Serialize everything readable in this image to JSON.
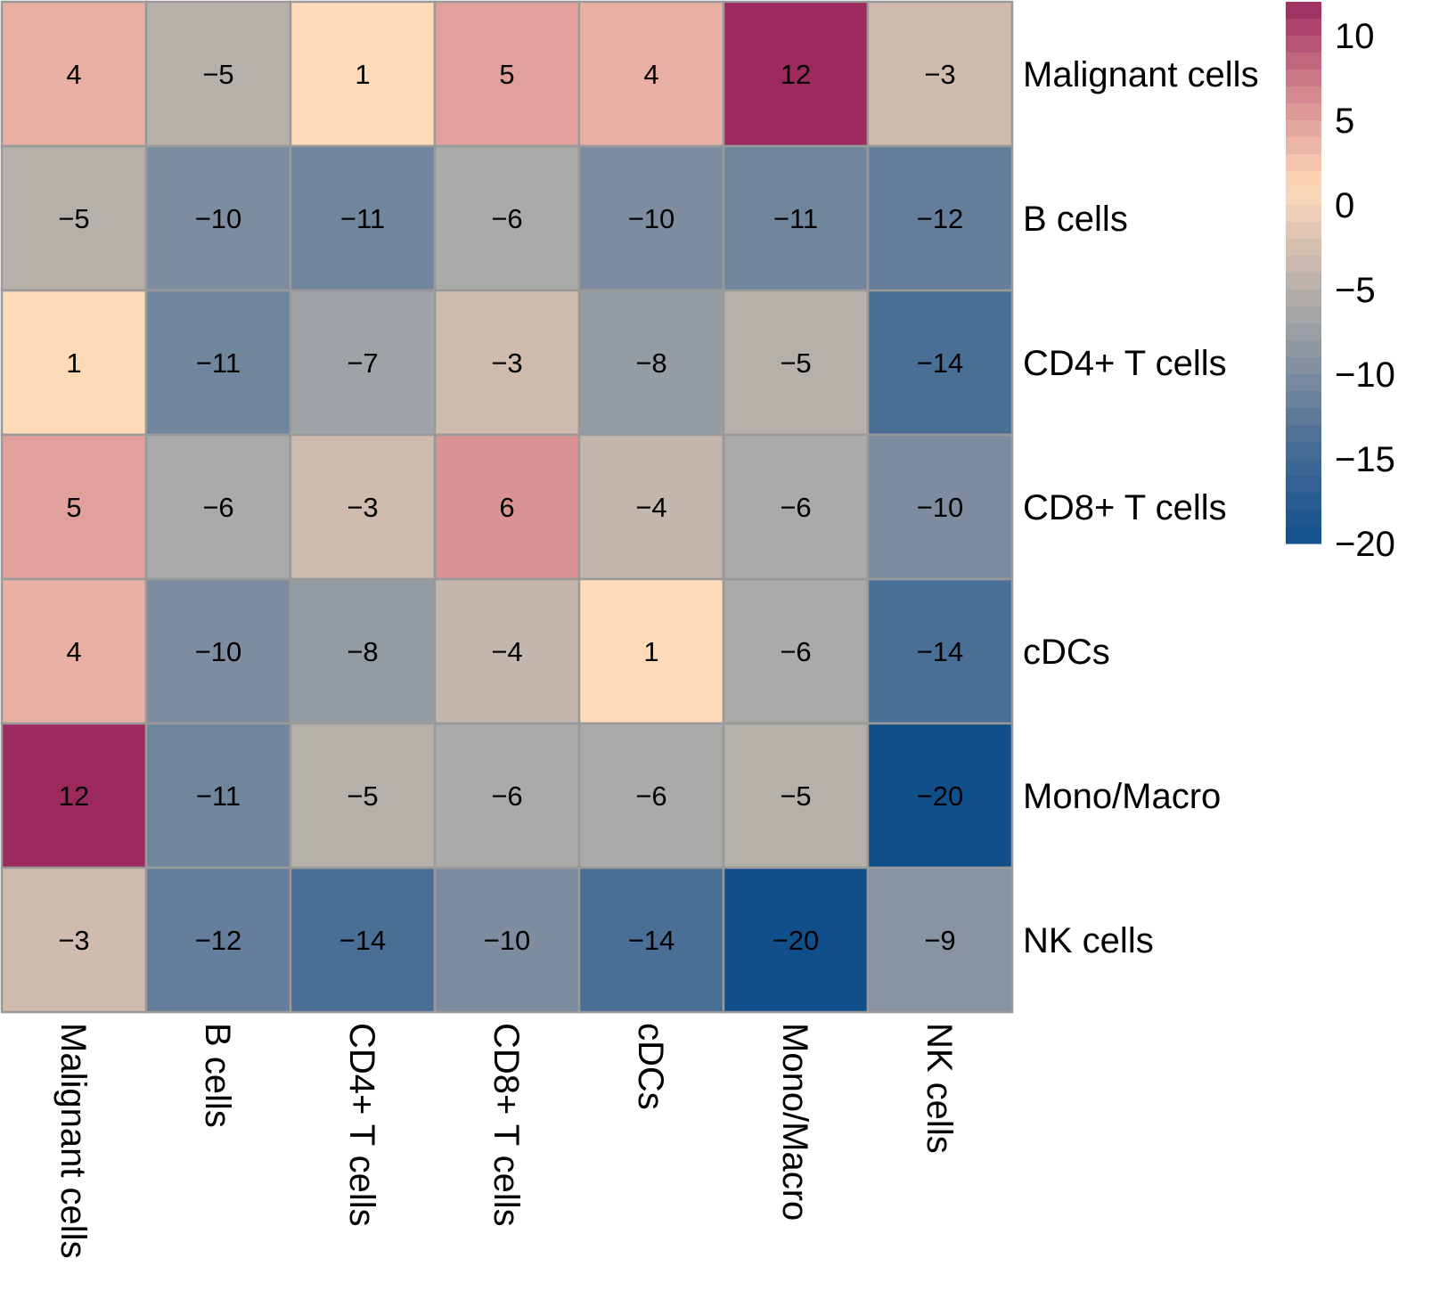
{
  "chart_data": {
    "type": "heatmap",
    "title": "",
    "rows": [
      "Malignant cells",
      "B cells",
      "CD4+ T cells",
      "CD8+ T cells",
      "cDCs",
      "Mono/Macro",
      "NK cells"
    ],
    "columns": [
      "Malignant cells",
      "B cells",
      "CD4+ T cells",
      "CD8+ T cells",
      "cDCs",
      "Mono/Macro",
      "NK cells"
    ],
    "values": [
      [
        4,
        -5,
        1,
        5,
        4,
        12,
        -3
      ],
      [
        -5,
        -10,
        -11,
        -6,
        -10,
        -11,
        -12
      ],
      [
        1,
        -11,
        -7,
        -3,
        -8,
        -5,
        -14
      ],
      [
        5,
        -6,
        -3,
        6,
        -4,
        -6,
        -10
      ],
      [
        4,
        -10,
        -8,
        -4,
        1,
        -6,
        -14
      ],
      [
        12,
        -11,
        -5,
        -6,
        -6,
        -5,
        -20
      ],
      [
        -3,
        -12,
        -14,
        -10,
        -14,
        -20,
        -9
      ]
    ],
    "cell_labels_shown": true,
    "row_label_position": "right",
    "column_label_position": "bottom",
    "column_label_rotation": "vertical",
    "legend": {
      "type": "colorbar",
      "position": "top-right",
      "range": [
        -20,
        12
      ],
      "ticks": [
        10,
        5,
        0,
        -5,
        -10,
        -15,
        -20
      ],
      "tick_labels": [
        "10",
        "5",
        "0",
        "−5",
        "−10",
        "−15",
        "−20"
      ],
      "color_stops": [
        {
          "value": 12,
          "color": "#9C2A5E"
        },
        {
          "value": 6,
          "color": "#DA9295"
        },
        {
          "value": 1,
          "color": "#FEDAB9"
        },
        {
          "value": -3,
          "color": "#CFBCAF"
        },
        {
          "value": -6,
          "color": "#AAAAA8"
        },
        {
          "value": -10,
          "color": "#7D8D9F"
        },
        {
          "value": -14,
          "color": "#4A6F96"
        },
        {
          "value": -20,
          "color": "#114F8B"
        }
      ]
    },
    "grid_border_color": "#999999"
  }
}
